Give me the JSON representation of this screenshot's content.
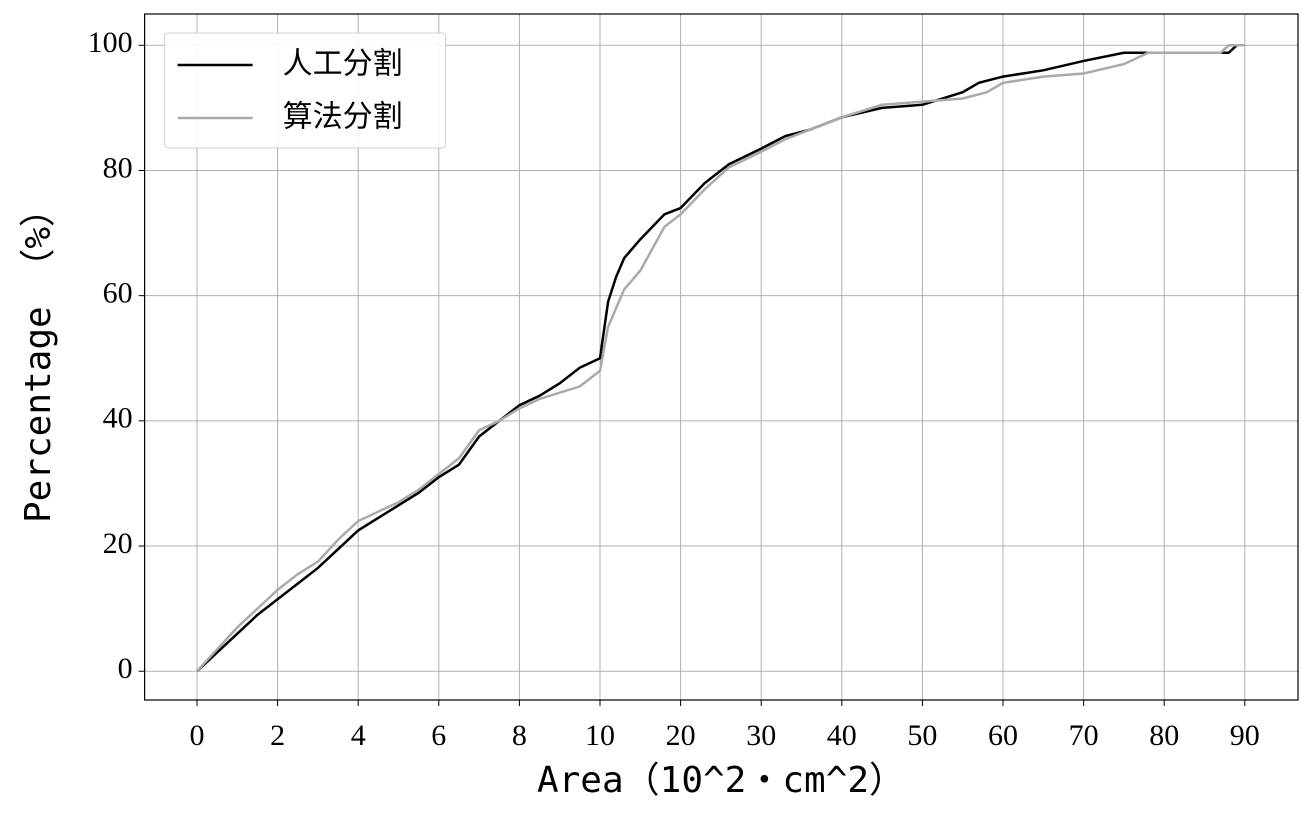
{
  "chart_data": {
    "type": "line",
    "xlabel": "Area（10^2・cm^2）",
    "ylabel": "Percentage （%）",
    "xlim": [
      -1.3,
      96.6
    ],
    "ylim": [
      -4.6,
      105
    ],
    "xticks": [
      0,
      2,
      4,
      6,
      8,
      10,
      20,
      30,
      40,
      50,
      60,
      70,
      80,
      90
    ],
    "yticks": [
      0,
      20,
      40,
      60,
      80,
      100
    ],
    "grid": true,
    "legend": "upper left",
    "series": [
      {
        "name": "人工分割",
        "color": "#000000",
        "x": [
          0,
          0.5,
          1,
          1.5,
          2,
          2.5,
          3,
          3.5,
          4,
          4.5,
          5,
          5.5,
          6,
          6.5,
          7,
          7.5,
          8,
          8.5,
          9,
          9.5,
          10,
          11,
          12,
          13,
          15,
          18,
          20,
          23,
          26,
          30,
          33,
          36,
          40,
          45,
          50,
          55,
          57,
          60,
          65,
          70,
          75,
          88,
          89
        ],
        "values": [
          0,
          3,
          6,
          9,
          11.5,
          14,
          16.5,
          19.5,
          22.5,
          24.5,
          26.5,
          28.5,
          31,
          33,
          37.5,
          40,
          42.5,
          44,
          46,
          48.5,
          50,
          59,
          63,
          66,
          69,
          73,
          74,
          78,
          81,
          83.5,
          85.5,
          86.5,
          88.5,
          90,
          90.5,
          92.5,
          94,
          95,
          96,
          97.5,
          98.8,
          98.8,
          100
        ]
      },
      {
        "name": "算法分割",
        "color": "#aaaaaa",
        "x": [
          0,
          0.5,
          1,
          1.5,
          2,
          2.5,
          3,
          3.5,
          4,
          4.5,
          5,
          5.5,
          6,
          6.5,
          7,
          7.5,
          8,
          8.5,
          9,
          9.5,
          10,
          11,
          12,
          13,
          15,
          18,
          20,
          23,
          26,
          30,
          33,
          36,
          40,
          45,
          50,
          55,
          58,
          60,
          65,
          70,
          75,
          78,
          87,
          88,
          90
        ],
        "values": [
          0,
          3.5,
          7,
          10,
          13,
          15.5,
          17.5,
          21,
          24,
          25.5,
          27,
          29,
          31.5,
          34,
          38.5,
          40,
          42,
          43.5,
          44.5,
          45.5,
          48,
          55,
          58,
          61,
          64,
          71,
          73,
          77,
          80.5,
          83,
          85,
          86.5,
          88.5,
          90.5,
          91,
          91.5,
          92.5,
          94,
          95,
          95.5,
          97,
          98.8,
          98.8,
          100,
          100
        ]
      }
    ]
  }
}
